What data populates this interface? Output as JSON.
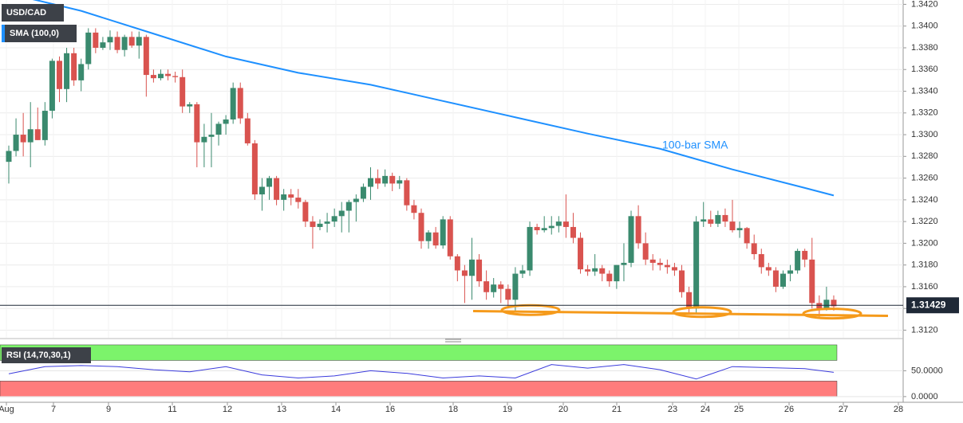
{
  "chart_data": {
    "type": "candlestick",
    "symbol": "USD/CAD",
    "indicator": "SMA (100,0)",
    "annotation": "100-bar SMA",
    "up_color": "#3a8a6e",
    "down_color": "#d9534f",
    "sma_color": "#1e90ff",
    "support_color": "#f59a1b",
    "ylim": [
      1.3113,
      1.3424
    ],
    "yticks": [
      {
        "value": 1.312,
        "label": "1.3120"
      },
      {
        "value": 1.314,
        "label": "1.3140"
      },
      {
        "value": 1.316,
        "label": "1.3160"
      },
      {
        "value": 1.318,
        "label": "1.3180"
      },
      {
        "value": 1.32,
        "label": "1.3200"
      },
      {
        "value": 1.322,
        "label": "1.3220"
      },
      {
        "value": 1.324,
        "label": "1.3240"
      },
      {
        "value": 1.326,
        "label": "1.3260"
      },
      {
        "value": 1.328,
        "label": "1.3280"
      },
      {
        "value": 1.33,
        "label": "1.3300"
      },
      {
        "value": 1.332,
        "label": "1.3320"
      },
      {
        "value": 1.334,
        "label": "1.3340"
      },
      {
        "value": 1.336,
        "label": "1.3360"
      },
      {
        "value": 1.338,
        "label": "1.3380"
      },
      {
        "value": 1.34,
        "label": "1.3400"
      },
      {
        "value": 1.342,
        "label": "1.3420"
      }
    ],
    "grid": true,
    "x_labels": [
      "Aug",
      "7",
      "9",
      "11",
      "12",
      "13",
      "14",
      "16",
      "18",
      "19",
      "20",
      "21",
      "23",
      "24",
      "25",
      "26",
      "27",
      "28"
    ],
    "open": [
      1.3275,
      1.3285,
      1.33,
      1.3293,
      1.3305,
      1.3295,
      1.3322,
      1.3368,
      1.3342,
      1.3375,
      1.335,
      1.3365,
      1.3394,
      1.338,
      1.3385,
      1.339,
      1.3378,
      1.339,
      1.3382,
      1.339,
      1.3355,
      1.3352,
      1.3356,
      1.3354,
      1.3353,
      1.3326,
      1.3328,
      1.3293,
      1.3298,
      1.33,
      1.331,
      1.3314,
      1.3343,
      1.3315,
      1.3292,
      1.3245,
      1.3252,
      1.326,
      1.324,
      1.3245,
      1.3242,
      1.3238,
      1.322,
      1.3215,
      1.3218,
      1.322,
      1.3225,
      1.323,
      1.3238,
      1.3241,
      1.3252,
      1.326,
      1.3255,
      1.3262,
      1.3255,
      1.3258,
      1.3235,
      1.3228,
      1.3202,
      1.321,
      1.3198,
      1.3222,
      1.3188,
      1.3175,
      1.317,
      1.3185,
      1.3165,
      1.3155,
      1.3162,
      1.3158,
      1.3148,
      1.3172,
      1.3175,
      1.3215,
      1.3212,
      1.3214,
      1.3216,
      1.322,
      1.3215,
      1.3205,
      1.3176,
      1.3174,
      1.3177,
      1.3172,
      1.3165,
      1.318,
      1.3182,
      1.3225,
      1.32,
      1.3185,
      1.3182,
      1.318,
      1.3178,
      1.3175,
      1.3155,
      1.314,
      1.322,
      1.3222,
      1.3218,
      1.3226,
      1.322,
      1.3212,
      1.3214,
      1.32,
      1.319,
      1.3178,
      1.3175,
      1.316,
      1.3172,
      1.3175,
      1.3193,
      1.3185,
      1.3145,
      1.314,
      1.3148
    ],
    "high": [
      1.329,
      1.3315,
      1.332,
      1.333,
      1.3325,
      1.333,
      1.337,
      1.3372,
      1.338,
      1.338,
      1.337,
      1.3398,
      1.3398,
      1.339,
      1.3396,
      1.3395,
      1.3392,
      1.3395,
      1.3395,
      1.3392,
      1.336,
      1.336,
      1.336,
      1.3358,
      1.336,
      1.333,
      1.333,
      1.331,
      1.332,
      1.3312,
      1.3318,
      1.3348,
      1.3348,
      1.332,
      1.3295,
      1.326,
      1.3262,
      1.3262,
      1.325,
      1.325,
      1.325,
      1.324,
      1.3225,
      1.3222,
      1.3228,
      1.3232,
      1.3238,
      1.324,
      1.3245,
      1.3255,
      1.327,
      1.3268,
      1.3268,
      1.3265,
      1.3262,
      1.326,
      1.324,
      1.3232,
      1.3212,
      1.3215,
      1.3225,
      1.3225,
      1.319,
      1.318,
      1.3205,
      1.319,
      1.3175,
      1.3168,
      1.3165,
      1.3162,
      1.3178,
      1.318,
      1.322,
      1.3218,
      1.3225,
      1.3225,
      1.3225,
      1.3245,
      1.3228,
      1.321,
      1.318,
      1.319,
      1.318,
      1.3175,
      1.318,
      1.32,
      1.323,
      1.3235,
      1.321,
      1.319,
      1.3186,
      1.3185,
      1.3182,
      1.318,
      1.316,
      1.3225,
      1.3238,
      1.323,
      1.323,
      1.3232,
      1.324,
      1.322,
      1.3215,
      1.3208,
      1.3195,
      1.3182,
      1.3178,
      1.3175,
      1.318,
      1.3195,
      1.3195,
      1.3205,
      1.3152,
      1.316,
      1.3152
    ],
    "low": [
      1.3255,
      1.328,
      1.328,
      1.327,
      1.3295,
      1.329,
      1.3315,
      1.333,
      1.333,
      1.3345,
      1.334,
      1.336,
      1.3375,
      1.3378,
      1.3378,
      1.3375,
      1.3372,
      1.338,
      1.337,
      1.3335,
      1.3348,
      1.335,
      1.335,
      1.3348,
      1.332,
      1.332,
      1.327,
      1.327,
      1.327,
      1.329,
      1.33,
      1.331,
      1.331,
      1.329,
      1.324,
      1.323,
      1.324,
      1.3235,
      1.323,
      1.3235,
      1.3232,
      1.3215,
      1.3195,
      1.3212,
      1.321,
      1.3215,
      1.321,
      1.321,
      1.322,
      1.3238,
      1.324,
      1.325,
      1.3252,
      1.3248,
      1.325,
      1.323,
      1.3222,
      1.3195,
      1.3195,
      1.3195,
      1.3195,
      1.3185,
      1.3165,
      1.3145,
      1.3148,
      1.316,
      1.3148,
      1.315,
      1.3145,
      1.314,
      1.3138,
      1.3168,
      1.317,
      1.3208,
      1.321,
      1.3208,
      1.321,
      1.3205,
      1.32,
      1.3172,
      1.317,
      1.317,
      1.3165,
      1.316,
      1.3158,
      1.3165,
      1.3178,
      1.3195,
      1.318,
      1.3175,
      1.3175,
      1.3172,
      1.317,
      1.315,
      1.3135,
      1.3135,
      1.3215,
      1.3215,
      1.3215,
      1.3215,
      1.321,
      1.3205,
      1.3195,
      1.3185,
      1.3172,
      1.317,
      1.3155,
      1.3158,
      1.3165,
      1.3172,
      1.3178,
      1.314,
      1.3132,
      1.3138,
      1.3138
    ],
    "close": [
      1.3285,
      1.33,
      1.3293,
      1.3305,
      1.3295,
      1.3322,
      1.3368,
      1.3342,
      1.3375,
      1.335,
      1.3365,
      1.3394,
      1.338,
      1.3385,
      1.339,
      1.3378,
      1.339,
      1.3382,
      1.339,
      1.3355,
      1.3352,
      1.3356,
      1.3354,
      1.3353,
      1.3326,
      1.3328,
      1.3293,
      1.3298,
      1.33,
      1.331,
      1.3314,
      1.3343,
      1.3315,
      1.3292,
      1.3245,
      1.3252,
      1.326,
      1.324,
      1.3245,
      1.3242,
      1.3238,
      1.322,
      1.3215,
      1.3218,
      1.322,
      1.3225,
      1.323,
      1.3238,
      1.3241,
      1.3252,
      1.326,
      1.3255,
      1.3262,
      1.3255,
      1.3258,
      1.3235,
      1.3228,
      1.3202,
      1.321,
      1.3198,
      1.3222,
      1.3188,
      1.3175,
      1.317,
      1.3185,
      1.3165,
      1.3155,
      1.3162,
      1.3158,
      1.3148,
      1.3172,
      1.3175,
      1.3215,
      1.3212,
      1.3214,
      1.3216,
      1.322,
      1.3215,
      1.3205,
      1.3176,
      1.3174,
      1.3177,
      1.3172,
      1.3165,
      1.318,
      1.3182,
      1.3225,
      1.32,
      1.3185,
      1.3182,
      1.318,
      1.3178,
      1.3175,
      1.3155,
      1.314,
      1.322,
      1.3222,
      1.3218,
      1.3226,
      1.322,
      1.3212,
      1.3214,
      1.32,
      1.319,
      1.3178,
      1.3175,
      1.316,
      1.3172,
      1.3175,
      1.3193,
      1.3185,
      1.3145,
      1.314,
      1.3148,
      1.3142
    ],
    "sma_index": [
      0,
      10,
      20,
      30,
      40,
      50,
      60,
      70,
      80,
      90,
      100,
      110,
      114
    ],
    "sma_values": [
      1.343,
      1.3414,
      1.3393,
      1.3372,
      1.3357,
      1.3346,
      1.3331,
      1.3316,
      1.3301,
      1.3287,
      1.3268,
      1.3251,
      1.3244
    ],
    "last_price": 1.31429,
    "support": [
      1.31376,
      1.31332
    ],
    "rsi_label": "RSI (14,70,30,1)",
    "rsi_color": "#3b3bdd",
    "rsi_lim": [
      -11,
      103
    ],
    "rsi_ticks": [
      {
        "value": 0,
        "label": "0.0000"
      },
      {
        "value": 50,
        "label": "50.0000"
      }
    ],
    "rsi_bands": [
      [
        70,
        100,
        "#7cf36b"
      ],
      [
        0,
        30,
        "#ff7c7c"
      ]
    ],
    "rsi_index": [
      0,
      5,
      10,
      15,
      20,
      25,
      30,
      35,
      40,
      45,
      50,
      55,
      60,
      65,
      70,
      75,
      80,
      85,
      90,
      95,
      100,
      105,
      110,
      114
    ],
    "rsi_values": [
      44,
      58,
      60,
      58,
      52,
      48,
      58,
      42,
      36,
      40,
      50,
      45,
      36,
      40,
      36,
      62,
      55,
      62,
      52,
      34,
      58,
      56,
      54,
      47
    ]
  }
}
